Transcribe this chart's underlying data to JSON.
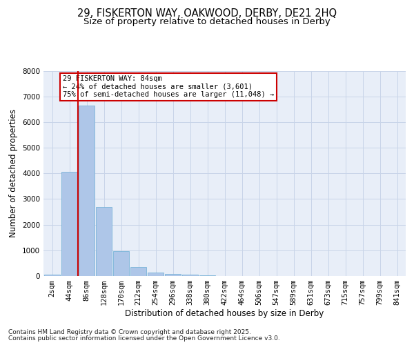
{
  "title_line1": "29, FISKERTON WAY, OAKWOOD, DERBY, DE21 2HQ",
  "title_line2": "Size of property relative to detached houses in Derby",
  "xlabel": "Distribution of detached houses by size in Derby",
  "ylabel": "Number of detached properties",
  "categories": [
    "2sqm",
    "44sqm",
    "86sqm",
    "128sqm",
    "170sqm",
    "212sqm",
    "254sqm",
    "296sqm",
    "338sqm",
    "380sqm",
    "422sqm",
    "464sqm",
    "506sqm",
    "547sqm",
    "589sqm",
    "631sqm",
    "673sqm",
    "715sqm",
    "757sqm",
    "799sqm",
    "841sqm"
  ],
  "values": [
    60,
    4050,
    6650,
    2680,
    980,
    350,
    135,
    75,
    50,
    40,
    0,
    0,
    0,
    0,
    0,
    0,
    0,
    0,
    0,
    0,
    0
  ],
  "bar_color": "#aec6e8",
  "bar_edge_color": "#6aadd5",
  "vline_color": "#cc0000",
  "annotation_box_text": "29 FISKERTON WAY: 84sqm\n← 24% of detached houses are smaller (3,601)\n75% of semi-detached houses are larger (11,048) →",
  "annotation_box_facecolor": "white",
  "annotation_box_edgecolor": "#cc0000",
  "ylim": [
    0,
    8000
  ],
  "yticks": [
    0,
    1000,
    2000,
    3000,
    4000,
    5000,
    6000,
    7000,
    8000
  ],
  "grid_color": "#c8d4e8",
  "plot_bg_color": "#e8eef8",
  "footer_line1": "Contains HM Land Registry data © Crown copyright and database right 2025.",
  "footer_line2": "Contains public sector information licensed under the Open Government Licence v3.0.",
  "title_fontsize": 10.5,
  "subtitle_fontsize": 9.5,
  "axis_label_fontsize": 8.5,
  "tick_fontsize": 7.5,
  "annotation_fontsize": 7.5,
  "footer_fontsize": 6.5
}
